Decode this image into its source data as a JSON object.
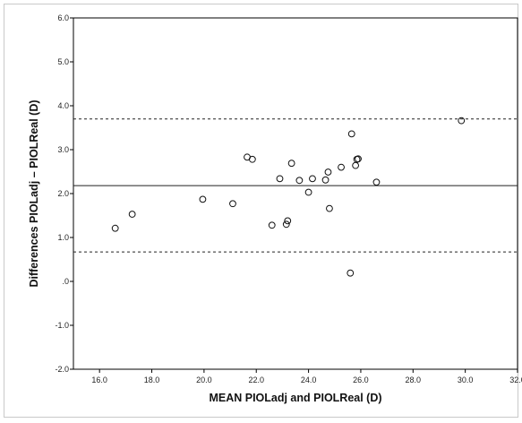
{
  "chart_data": {
    "type": "scatter",
    "xlabel": "MEAN PIOLadj and PIOLReal (D)",
    "ylabel": "Differences PIOLadj – PIOLReal (D)",
    "xlim": [
      15,
      32
    ],
    "ylim": [
      -2,
      6
    ],
    "x_ticks": [
      16,
      18,
      20,
      22,
      24,
      26,
      28,
      30,
      32
    ],
    "x_tick_labels": [
      "16.0",
      "18.0",
      "20.0",
      "22.0",
      "24.0",
      "26.0",
      "28.0",
      "30.0",
      "32.0"
    ],
    "y_ticks": [
      -2,
      -1,
      0,
      1,
      2,
      3,
      4,
      5,
      6
    ],
    "y_tick_labels": [
      "-2.0",
      "-1.0",
      ".0",
      "1.0",
      "2.0",
      "3.0",
      "4.0",
      "5.0",
      "6.0"
    ],
    "grid": false,
    "reference_lines": [
      {
        "y": 3.7,
        "style": "dashed"
      },
      {
        "y": 2.18,
        "style": "solid"
      },
      {
        "y": 0.67,
        "style": "dashed"
      }
    ],
    "points": [
      {
        "x": 16.6,
        "y": 1.21
      },
      {
        "x": 17.25,
        "y": 1.53
      },
      {
        "x": 19.95,
        "y": 1.87
      },
      {
        "x": 21.1,
        "y": 1.77
      },
      {
        "x": 21.65,
        "y": 2.83
      },
      {
        "x": 21.85,
        "y": 2.78
      },
      {
        "x": 22.6,
        "y": 1.28
      },
      {
        "x": 22.9,
        "y": 2.34
      },
      {
        "x": 23.15,
        "y": 1.3
      },
      {
        "x": 23.2,
        "y": 1.38
      },
      {
        "x": 23.35,
        "y": 2.69
      },
      {
        "x": 23.65,
        "y": 2.3
      },
      {
        "x": 24.0,
        "y": 2.03
      },
      {
        "x": 24.15,
        "y": 2.34
      },
      {
        "x": 24.65,
        "y": 2.31
      },
      {
        "x": 24.75,
        "y": 2.49
      },
      {
        "x": 24.8,
        "y": 1.66
      },
      {
        "x": 25.25,
        "y": 2.6
      },
      {
        "x": 25.6,
        "y": 0.19
      },
      {
        "x": 25.65,
        "y": 3.36
      },
      {
        "x": 25.8,
        "y": 2.64
      },
      {
        "x": 25.85,
        "y": 2.78
      },
      {
        "x": 25.9,
        "y": 2.79
      },
      {
        "x": 26.6,
        "y": 2.26
      },
      {
        "x": 29.85,
        "y": 3.66
      }
    ]
  }
}
